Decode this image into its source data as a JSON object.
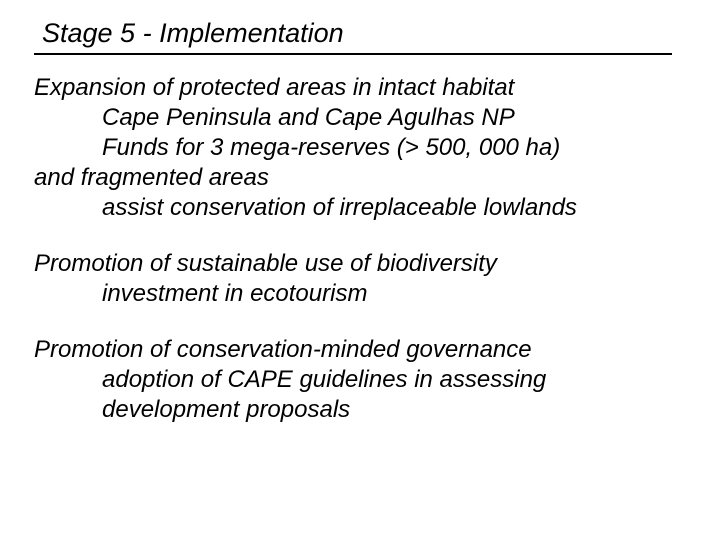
{
  "title": "Stage 5 - Implementation",
  "blocks": [
    {
      "lines": [
        {
          "cls": "line-main",
          "text": "Expansion of protected areas in intact habitat"
        },
        {
          "cls": "line-sub",
          "text": "Cape Peninsula and Cape Agulhas NP"
        },
        {
          "cls": "line-sub",
          "text": "Funds for 3 mega-reserves (> 500, 000 ha)"
        },
        {
          "cls": "line-main",
          "text": "and fragmented areas"
        },
        {
          "cls": "line-sub",
          "text": "assist conservation of irreplaceable lowlands"
        }
      ]
    },
    {
      "lines": [
        {
          "cls": "line-main",
          "text": "Promotion of sustainable use of biodiversity"
        },
        {
          "cls": "line-sub",
          "text": "investment in ecotourism"
        }
      ]
    },
    {
      "lines": [
        {
          "cls": "line-main",
          "text": "Promotion of conservation-minded governance"
        },
        {
          "cls": "line-sub",
          "text": "adoption of CAPE guidelines in assessing"
        },
        {
          "cls": "line-sub",
          "text": "development proposals"
        }
      ]
    }
  ]
}
